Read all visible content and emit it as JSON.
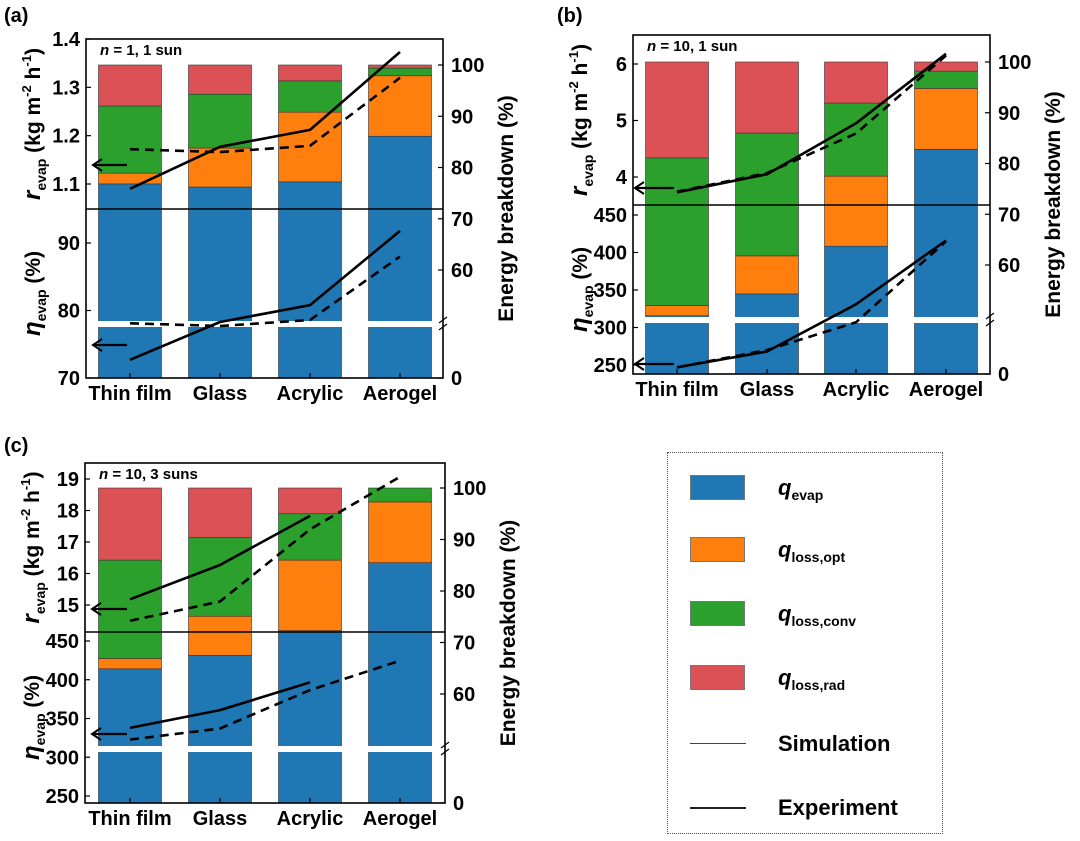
{
  "legend": {
    "items": [
      {
        "symbol": "q",
        "sub": "evap",
        "color": "#1f77b4"
      },
      {
        "symbol": "q",
        "sub": "loss,opt",
        "color": "#ff7f0e"
      },
      {
        "symbol": "q",
        "sub": "loss,conv",
        "color": "#2ca02c"
      },
      {
        "symbol": "q",
        "sub": "loss,rad",
        "color": "#db5155"
      }
    ],
    "lines": [
      {
        "label": "Simulation"
      },
      {
        "label": "Experiment"
      }
    ]
  },
  "axis_labels": {
    "upper_left": {
      "sym": "r",
      "sub": "evap",
      "a": " (kg m",
      "sup1": "-2",
      "b": " h",
      "sup2": "-1",
      "c": ")"
    },
    "lower_left": {
      "sym": "η",
      "sub": "evap",
      "a": " (%)"
    },
    "right": "Energy breakdown (%)"
  },
  "chart_data": [
    {
      "panel": "(a)",
      "type": "bar",
      "annotation": {
        "n": "n",
        "rest": " = 1, 1 sun"
      },
      "categories": [
        "Thin film",
        "Glass",
        "Acrylic",
        "Aerogel"
      ],
      "stack_names": [
        "q_evap",
        "q_loss,opt",
        "q_loss,conv",
        "q_loss,rad"
      ],
      "stacks": [
        [
          76.8,
          2.1,
          13.1,
          8.0
        ],
        [
          76.2,
          7.6,
          10.5,
          5.7
        ],
        [
          77.2,
          13.6,
          6.1,
          3.1
        ],
        [
          86.1,
          11.8,
          1.5,
          0.6
        ]
      ],
      "right_ticks": [
        "100",
        "90",
        "80",
        "70",
        "60",
        "0"
      ],
      "right_tick_values": [
        100,
        90,
        80,
        70,
        60,
        0
      ],
      "upper_ticks": [
        "1.4",
        "1.3",
        "1.2",
        "1.1"
      ],
      "upper_tick_values": [
        1.4,
        1.3,
        1.2,
        1.1
      ],
      "lower_ticks": [
        "90",
        "80",
        "70"
      ],
      "lower_tick_values": [
        90,
        80,
        70
      ],
      "r_evap": {
        "Experiment": [
          1.09,
          1.177,
          1.212,
          1.373
        ],
        "Simulation": [
          1.172,
          1.166,
          1.179,
          1.32
        ]
      },
      "eta_evap": {
        "Experiment": [
          72.7,
          78.3,
          80.8,
          91.8
        ],
        "Simulation": [
          78.1,
          77.7,
          78.6,
          88.0
        ]
      }
    },
    {
      "panel": "(b)",
      "type": "bar",
      "annotation": {
        "n": "n",
        "rest": " = 10, 1 sun"
      },
      "categories": [
        "Thin film",
        "Glass",
        "Acrylic",
        "Aerogel"
      ],
      "stack_names": [
        "q_evap",
        "q_loss,opt",
        "q_loss,conv",
        "q_loss,rad"
      ],
      "stacks": [
        [
          50.0,
          2.0,
          29.1,
          18.9
        ],
        [
          54.3,
          7.5,
          24.2,
          14.0
        ],
        [
          63.7,
          13.8,
          14.4,
          8.1
        ],
        [
          82.8,
          12.0,
          3.4,
          1.8
        ]
      ],
      "right_ticks": [
        "100",
        "90",
        "80",
        "70",
        "60",
        "0"
      ],
      "right_tick_values": [
        100,
        90,
        80,
        70,
        60,
        0
      ],
      "upper_ticks": [
        "6",
        "5",
        "4"
      ],
      "upper_tick_values": [
        6,
        5,
        4
      ],
      "lower_ticks": [
        "450",
        "400",
        "350",
        "300",
        "250"
      ],
      "lower_tick_values": [
        450,
        400,
        350,
        300,
        250
      ],
      "r_evap": {
        "Experiment": [
          3.73,
          4.05,
          4.95,
          6.18
        ],
        "Simulation": [
          3.74,
          4.07,
          4.77,
          6.15
        ]
      },
      "eta_evap": {
        "Experiment": [
          247,
          268,
          331,
          416
        ],
        "Simulation": [
          247,
          270,
          307,
          415
        ]
      }
    },
    {
      "panel": "(c)",
      "type": "bar",
      "annotation": {
        "n": "n",
        "rest": " = 10, 3 suns"
      },
      "categories": [
        "Thin film",
        "Glass",
        "Acrylic",
        "Aerogel"
      ],
      "stack_names": [
        "q_evap",
        "q_loss,opt",
        "q_loss,conv",
        "q_loss,rad"
      ],
      "stacks": [
        [
          64.9,
          2.0,
          19.1,
          14.0
        ],
        [
          67.5,
          7.6,
          15.3,
          9.6
        ],
        [
          72.3,
          13.7,
          9.0,
          5.0
        ],
        [
          85.5,
          11.8,
          2.7,
          0.0
        ]
      ],
      "right_ticks": [
        "100",
        "90",
        "80",
        "70",
        "60",
        "0"
      ],
      "right_tick_values": [
        100,
        90,
        80,
        70,
        60,
        0
      ],
      "upper_ticks": [
        "19",
        "18",
        "17",
        "16",
        "15"
      ],
      "upper_tick_values": [
        19,
        18,
        17,
        16,
        15
      ],
      "lower_ticks": [
        "450",
        "400",
        "350",
        "300",
        "250"
      ],
      "lower_tick_values": [
        450,
        400,
        350,
        300,
        250
      ],
      "r_evap": {
        "Experiment": [
          15.18,
          16.27,
          17.83,
          null
        ],
        "Simulation": [
          14.5,
          15.11,
          17.4,
          19.07
        ]
      },
      "eta_evap": {
        "Experiment": [
          337.9,
          360.8,
          396.6,
          null
        ],
        "Simulation": [
          322.8,
          337.1,
          386.6,
          424.6
        ]
      }
    }
  ]
}
